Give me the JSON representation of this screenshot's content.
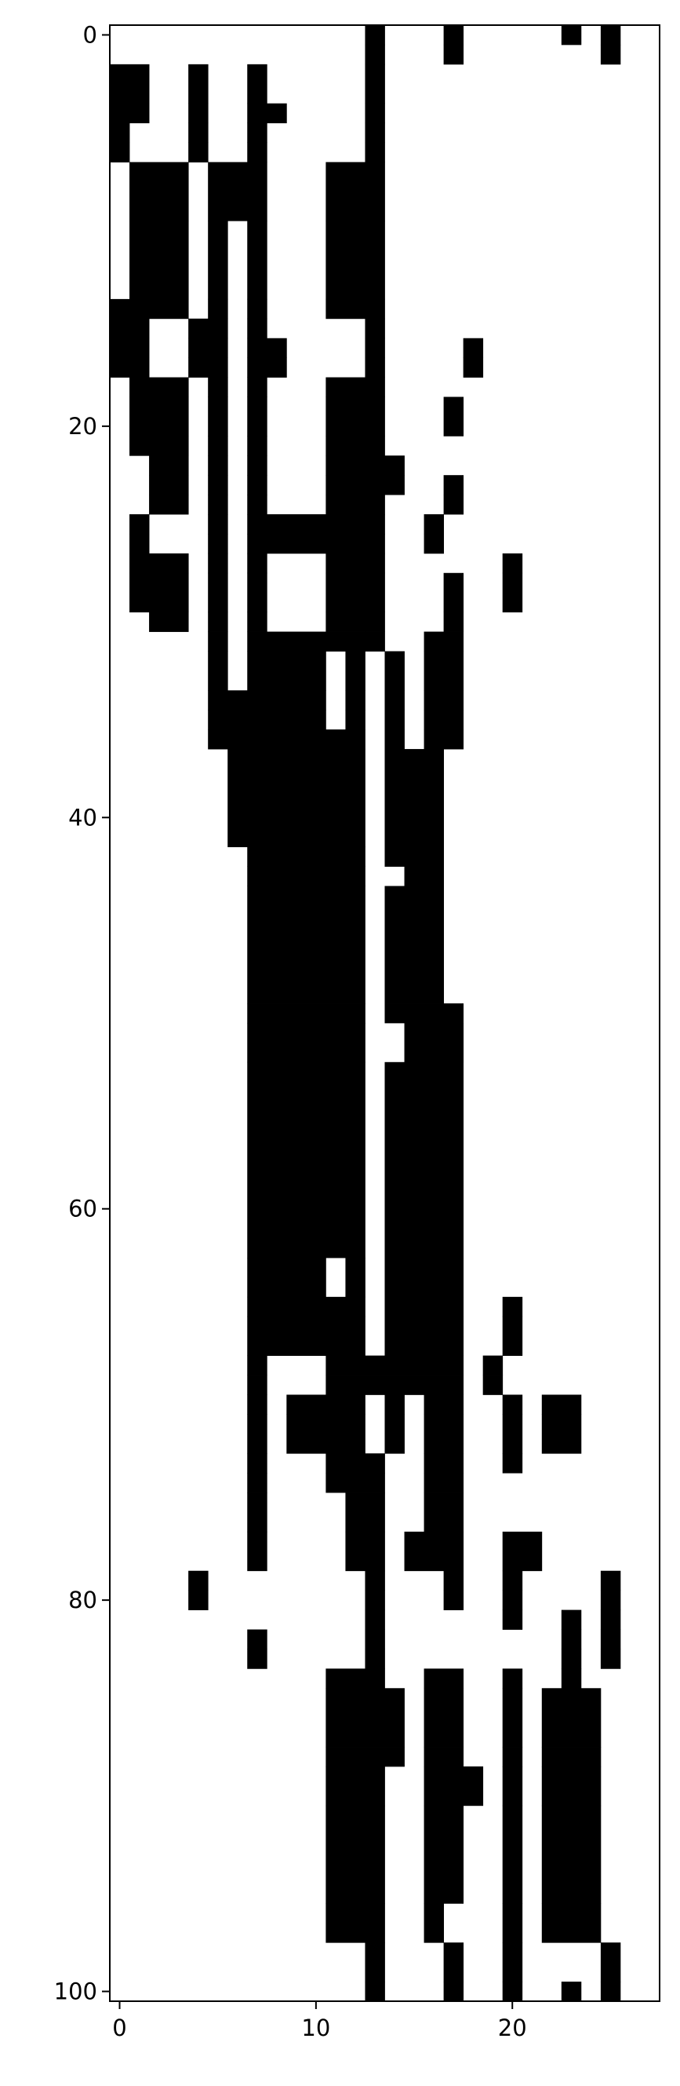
{
  "chart_data": {
    "type": "heatmap",
    "title": "",
    "xlabel": "",
    "ylabel": "",
    "colormap": "binary",
    "cell_colors": {
      "0": "#ffffff",
      "1": "#000000"
    },
    "n_rows": 101,
    "n_cols": 28,
    "xlim": [
      -0.5,
      27.5
    ],
    "ylim": [
      100.5,
      -0.5
    ],
    "xticks": [
      {
        "value": 0,
        "label": "0"
      },
      {
        "value": 10,
        "label": "10"
      },
      {
        "value": 20,
        "label": "20"
      }
    ],
    "yticks": [
      {
        "value": 0,
        "label": "0"
      },
      {
        "value": 20,
        "label": "20"
      },
      {
        "value": 40,
        "label": "40"
      },
      {
        "value": 60,
        "label": "60"
      },
      {
        "value": 80,
        "label": "80"
      },
      {
        "value": 100,
        "label": "100"
      }
    ],
    "grid": false,
    "black_runs": [
      {
        "rows": [
          0,
          0
        ],
        "cols": [
          [
            13,
            13
          ],
          [
            17,
            17
          ],
          [
            23,
            23
          ],
          [
            25,
            25
          ]
        ]
      },
      {
        "rows": [
          1,
          1
        ],
        "cols": [
          [
            13,
            13
          ],
          [
            17,
            17
          ],
          [
            25,
            25
          ]
        ]
      },
      {
        "rows": [
          2,
          3
        ],
        "cols": [
          [
            0,
            1
          ],
          [
            4,
            4
          ],
          [
            7,
            7
          ],
          [
            13,
            13
          ]
        ]
      },
      {
        "rows": [
          4,
          4
        ],
        "cols": [
          [
            0,
            1
          ],
          [
            4,
            4
          ],
          [
            7,
            8
          ],
          [
            13,
            13
          ]
        ]
      },
      {
        "rows": [
          5,
          5
        ],
        "cols": [
          [
            0,
            0
          ],
          [
            4,
            4
          ],
          [
            7,
            7
          ],
          [
            13,
            13
          ]
        ]
      },
      {
        "rows": [
          6,
          6
        ],
        "cols": [
          [
            0,
            0
          ],
          [
            4,
            4
          ],
          [
            7,
            7
          ],
          [
            13,
            13
          ]
        ]
      },
      {
        "rows": [
          7,
          9
        ],
        "cols": [
          [
            1,
            3
          ],
          [
            5,
            7
          ],
          [
            11,
            13
          ]
        ]
      },
      {
        "rows": [
          10,
          13
        ],
        "cols": [
          [
            1,
            3
          ],
          [
            5,
            5
          ],
          [
            7,
            7
          ],
          [
            11,
            13
          ]
        ]
      },
      {
        "rows": [
          14,
          14
        ],
        "cols": [
          [
            0,
            3
          ],
          [
            5,
            5
          ],
          [
            7,
            7
          ],
          [
            11,
            13
          ]
        ]
      },
      {
        "rows": [
          15,
          15
        ],
        "cols": [
          [
            0,
            1
          ],
          [
            4,
            5
          ],
          [
            7,
            7
          ],
          [
            13,
            13
          ]
        ]
      },
      {
        "rows": [
          16,
          16
        ],
        "cols": [
          [
            0,
            1
          ],
          [
            4,
            5
          ],
          [
            7,
            8
          ],
          [
            13,
            13
          ],
          [
            18,
            18
          ]
        ]
      },
      {
        "rows": [
          17,
          17
        ],
        "cols": [
          [
            0,
            1
          ],
          [
            4,
            5
          ],
          [
            7,
            8
          ],
          [
            13,
            13
          ],
          [
            18,
            18
          ]
        ]
      },
      {
        "rows": [
          18,
          18
        ],
        "cols": [
          [
            1,
            3
          ],
          [
            5,
            5
          ],
          [
            7,
            7
          ],
          [
            11,
            13
          ]
        ]
      },
      {
        "rows": [
          19,
          20
        ],
        "cols": [
          [
            1,
            3
          ],
          [
            5,
            5
          ],
          [
            7,
            7
          ],
          [
            11,
            13
          ],
          [
            17,
            17
          ]
        ]
      },
      {
        "rows": [
          21,
          21
        ],
        "cols": [
          [
            1,
            3
          ],
          [
            5,
            5
          ],
          [
            7,
            7
          ],
          [
            11,
            13
          ]
        ]
      },
      {
        "rows": [
          22,
          22
        ],
        "cols": [
          [
            2,
            3
          ],
          [
            5,
            5
          ],
          [
            7,
            7
          ],
          [
            11,
            14
          ]
        ]
      },
      {
        "rows": [
          23,
          23
        ],
        "cols": [
          [
            2,
            3
          ],
          [
            5,
            5
          ],
          [
            7,
            7
          ],
          [
            11,
            14
          ],
          [
            17,
            17
          ]
        ]
      },
      {
        "rows": [
          24,
          24
        ],
        "cols": [
          [
            2,
            3
          ],
          [
            5,
            5
          ],
          [
            7,
            7
          ],
          [
            11,
            13
          ],
          [
            17,
            17
          ]
        ]
      },
      {
        "rows": [
          25,
          25
        ],
        "cols": [
          [
            1,
            1
          ],
          [
            5,
            5
          ],
          [
            7,
            12
          ],
          [
            13,
            13
          ],
          [
            16,
            16
          ]
        ]
      },
      {
        "rows": [
          26,
          26
        ],
        "cols": [
          [
            1,
            1
          ],
          [
            5,
            5
          ],
          [
            7,
            12
          ],
          [
            13,
            13
          ],
          [
            16,
            16
          ]
        ]
      },
      {
        "rows": [
          27,
          27
        ],
        "cols": [
          [
            1,
            3
          ],
          [
            5,
            5
          ],
          [
            7,
            7
          ],
          [
            11,
            13
          ],
          [
            20,
            20
          ]
        ]
      },
      {
        "rows": [
          28,
          29
        ],
        "cols": [
          [
            1,
            3
          ],
          [
            5,
            5
          ],
          [
            7,
            7
          ],
          [
            11,
            13
          ],
          [
            17,
            17
          ],
          [
            20,
            20
          ]
        ]
      },
      {
        "rows": [
          30,
          30
        ],
        "cols": [
          [
            2,
            3
          ],
          [
            5,
            5
          ],
          [
            7,
            7
          ],
          [
            11,
            13
          ],
          [
            17,
            17
          ]
        ]
      },
      {
        "rows": [
          31,
          31
        ],
        "cols": [
          [
            5,
            5
          ],
          [
            7,
            12
          ],
          [
            13,
            13
          ],
          [
            16,
            17
          ]
        ]
      },
      {
        "rows": [
          32,
          33
        ],
        "cols": [
          [
            5,
            5
          ],
          [
            7,
            10
          ],
          [
            12,
            12
          ],
          [
            14,
            14
          ],
          [
            16,
            17
          ]
        ]
      },
      {
        "rows": [
          34,
          34
        ],
        "cols": [
          [
            5,
            10
          ],
          [
            12,
            12
          ],
          [
            14,
            14
          ],
          [
            16,
            17
          ]
        ]
      },
      {
        "rows": [
          35,
          35
        ],
        "cols": [
          [
            5,
            10
          ],
          [
            12,
            12
          ],
          [
            14,
            14
          ],
          [
            16,
            17
          ]
        ]
      },
      {
        "rows": [
          36,
          36
        ],
        "cols": [
          [
            5,
            12
          ],
          [
            14,
            14
          ],
          [
            16,
            17
          ]
        ]
      },
      {
        "rows": [
          37,
          41
        ],
        "cols": [
          [
            6,
            12
          ],
          [
            14,
            16
          ]
        ]
      },
      {
        "rows": [
          42,
          42
        ],
        "cols": [
          [
            7,
            12
          ],
          [
            14,
            16
          ]
        ]
      },
      {
        "rows": [
          43,
          43
        ],
        "cols": [
          [
            7,
            12
          ],
          [
            15,
            16
          ]
        ]
      },
      {
        "rows": [
          44,
          49
        ],
        "cols": [
          [
            7,
            12
          ],
          [
            14,
            16
          ]
        ]
      },
      {
        "rows": [
          50,
          50
        ],
        "cols": [
          [
            7,
            12
          ],
          [
            14,
            17
          ]
        ]
      },
      {
        "rows": [
          51,
          52
        ],
        "cols": [
          [
            7,
            12
          ],
          [
            15,
            17
          ]
        ]
      },
      {
        "rows": [
          53,
          62
        ],
        "cols": [
          [
            7,
            12
          ],
          [
            14,
            17
          ]
        ]
      },
      {
        "rows": [
          63,
          64
        ],
        "cols": [
          [
            7,
            10
          ],
          [
            12,
            12
          ],
          [
            14,
            17
          ]
        ]
      },
      {
        "rows": [
          65,
          65
        ],
        "cols": [
          [
            7,
            12
          ],
          [
            14,
            17
          ],
          [
            20,
            20
          ]
        ]
      },
      {
        "rows": [
          66,
          67
        ],
        "cols": [
          [
            7,
            12
          ],
          [
            14,
            17
          ],
          [
            20,
            20
          ]
        ]
      },
      {
        "rows": [
          68,
          68
        ],
        "cols": [
          [
            7,
            7
          ],
          [
            11,
            17
          ],
          [
            19,
            19
          ]
        ]
      },
      {
        "rows": [
          69,
          69
        ],
        "cols": [
          [
            7,
            7
          ],
          [
            11,
            17
          ],
          [
            19,
            19
          ]
        ]
      },
      {
        "rows": [
          70,
          70
        ],
        "cols": [
          [
            7,
            7
          ],
          [
            9,
            12
          ],
          [
            14,
            14
          ],
          [
            16,
            17
          ],
          [
            20,
            20
          ],
          [
            22,
            23
          ]
        ]
      },
      {
        "rows": [
          71,
          72
        ],
        "cols": [
          [
            7,
            7
          ],
          [
            9,
            12
          ],
          [
            14,
            14
          ],
          [
            16,
            17
          ],
          [
            20,
            20
          ],
          [
            22,
            23
          ]
        ]
      },
      {
        "rows": [
          73,
          73
        ],
        "cols": [
          [
            7,
            7
          ],
          [
            11,
            13
          ],
          [
            16,
            17
          ],
          [
            20,
            20
          ]
        ]
      },
      {
        "rows": [
          74,
          74
        ],
        "cols": [
          [
            7,
            7
          ],
          [
            11,
            13
          ],
          [
            16,
            17
          ]
        ]
      },
      {
        "rows": [
          75,
          76
        ],
        "cols": [
          [
            7,
            7
          ],
          [
            12,
            13
          ],
          [
            16,
            17
          ]
        ]
      },
      {
        "rows": [
          77,
          78
        ],
        "cols": [
          [
            7,
            7
          ],
          [
            12,
            13
          ],
          [
            15,
            17
          ],
          [
            20,
            21
          ]
        ]
      },
      {
        "rows": [
          79,
          79
        ],
        "cols": [
          [
            4,
            4
          ],
          [
            13,
            13
          ],
          [
            17,
            17
          ],
          [
            20,
            20
          ],
          [
            25,
            25
          ]
        ]
      },
      {
        "rows": [
          80,
          80
        ],
        "cols": [
          [
            4,
            4
          ],
          [
            13,
            13
          ],
          [
            17,
            17
          ],
          [
            20,
            20
          ],
          [
            25,
            25
          ]
        ]
      },
      {
        "rows": [
          81,
          81
        ],
        "cols": [
          [
            13,
            13
          ],
          [
            20,
            20
          ],
          [
            23,
            23
          ],
          [
            25,
            25
          ]
        ]
      },
      {
        "rows": [
          82,
          82
        ],
        "cols": [
          [
            7,
            7
          ],
          [
            13,
            13
          ],
          [
            23,
            23
          ],
          [
            25,
            25
          ]
        ]
      },
      {
        "rows": [
          83,
          83
        ],
        "cols": [
          [
            7,
            7
          ],
          [
            13,
            13
          ],
          [
            23,
            23
          ],
          [
            25,
            25
          ]
        ]
      },
      {
        "rows": [
          84,
          84
        ],
        "cols": [
          [
            11,
            13
          ],
          [
            16,
            17
          ],
          [
            20,
            20
          ],
          [
            23,
            23
          ]
        ]
      },
      {
        "rows": [
          85,
          87
        ],
        "cols": [
          [
            11,
            14
          ],
          [
            16,
            17
          ],
          [
            20,
            20
          ],
          [
            22,
            24
          ]
        ]
      },
      {
        "rows": [
          88,
          88
        ],
        "cols": [
          [
            11,
            14
          ],
          [
            16,
            17
          ],
          [
            20,
            20
          ],
          [
            22,
            24
          ]
        ]
      },
      {
        "rows": [
          89,
          90
        ],
        "cols": [
          [
            11,
            13
          ],
          [
            16,
            18
          ],
          [
            20,
            20
          ],
          [
            22,
            24
          ]
        ]
      },
      {
        "rows": [
          91,
          95
        ],
        "cols": [
          [
            11,
            13
          ],
          [
            16,
            17
          ],
          [
            20,
            20
          ],
          [
            22,
            24
          ]
        ]
      },
      {
        "rows": [
          96,
          97
        ],
        "cols": [
          [
            11,
            13
          ],
          [
            16,
            16
          ],
          [
            20,
            20
          ],
          [
            22,
            24
          ]
        ]
      },
      {
        "rows": [
          98,
          99
        ],
        "cols": [
          [
            13,
            13
          ],
          [
            17,
            17
          ],
          [
            20,
            20
          ],
          [
            25,
            25
          ]
        ]
      },
      {
        "rows": [
          100,
          100
        ],
        "cols": [
          [
            13,
            13
          ],
          [
            17,
            17
          ],
          [
            20,
            20
          ],
          [
            23,
            23
          ],
          [
            25,
            25
          ]
        ]
      }
    ]
  }
}
